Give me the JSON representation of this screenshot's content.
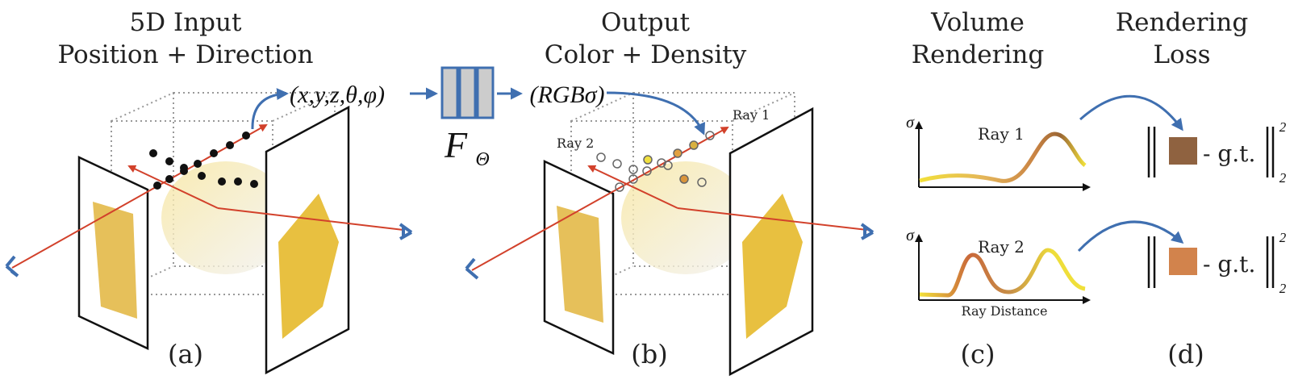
{
  "titles": {
    "a_line1": "5D Input",
    "a_line2": "Position + Direction",
    "b_line1": "Output",
    "b_line2": "Color + Density",
    "c_line1": "Volume",
    "c_line2": "Rendering",
    "d_line1": "Rendering",
    "d_line2": "Loss"
  },
  "panel_labels": {
    "a": "(a)",
    "b": "(b)",
    "c": "(c)",
    "d": "(d)"
  },
  "network": {
    "input": "(x,y,z,θ,φ)",
    "output": "(RGBσ)",
    "name": "F",
    "subscript": "Θ",
    "fill_color": "#cccccc",
    "border_color": "#3f6fb0"
  },
  "rays": {
    "ray1": "Ray 1",
    "ray2": "Ray 2"
  },
  "charts": {
    "y_label": "σ",
    "x_label": "Ray Distance",
    "top_title": "Ray 1",
    "bottom_title": "Ray 2"
  },
  "loss": {
    "term": "- g.t.",
    "superscript": "2",
    "subscript": "2",
    "color_ray1": "#8f6240",
    "color_ray2": "#d2834c"
  },
  "colors": {
    "arrow": "#3f6fb0",
    "ray": "#d2412b"
  }
}
